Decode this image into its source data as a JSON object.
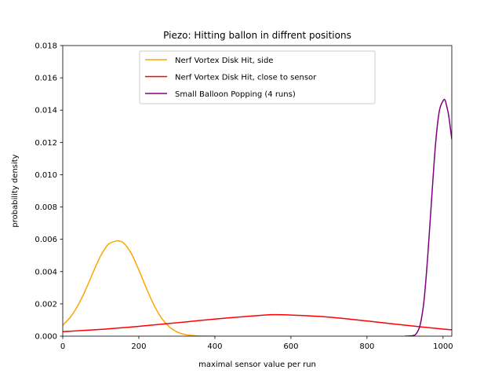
{
  "chart_data": {
    "type": "line",
    "title": "Piezo: Hitting ballon in diffrent positions",
    "xlabel": "maximal sensor value per run",
    "ylabel": "probability density",
    "xlim": [
      0,
      1023
    ],
    "ylim": [
      0,
      0.018
    ],
    "xticks": [
      0,
      200,
      400,
      600,
      800,
      1000
    ],
    "yticks": [
      "0.000",
      "0.002",
      "0.004",
      "0.006",
      "0.008",
      "0.010",
      "0.012",
      "0.014",
      "0.016",
      "0.018"
    ],
    "grid": false,
    "legend_position": "upper-center",
    "series": [
      {
        "name": "Nerf Vortex Disk Hit, side",
        "color": "#ffa500",
        "x": [
          0,
          20,
          40,
          60,
          80,
          100,
          120,
          140,
          145,
          160,
          180,
          200,
          220,
          240,
          260,
          280,
          300,
          320,
          340,
          360,
          380,
          400
        ],
        "y": [
          0.00068,
          0.00118,
          0.00191,
          0.00287,
          0.00396,
          0.00499,
          0.00569,
          0.00589,
          0.0059,
          0.00577,
          0.00513,
          0.00411,
          0.00296,
          0.00192,
          0.00111,
          0.00058,
          0.00027,
          0.00011,
          4e-05,
          1e-05,
          0.0,
          0.0
        ]
      },
      {
        "name": "Nerf Vortex Disk Hit, close to sensor",
        "color": "#ff0000",
        "x": [
          0,
          100,
          200,
          300,
          400,
          500,
          550,
          600,
          700,
          800,
          900,
          1000,
          1023
        ],
        "y": [
          0.00028,
          0.00042,
          0.00061,
          0.00083,
          0.00106,
          0.00125,
          0.00133,
          0.00131,
          0.00118,
          0.00094,
          0.00068,
          0.00044,
          0.0004
        ]
      },
      {
        "name": "Small Balloon Popping (4 runs)",
        "color": "#800080",
        "x": [
          900,
          920,
          930,
          940,
          950,
          960,
          970,
          980,
          990,
          1000,
          1005,
          1010,
          1015,
          1023
        ],
        "y": [
          0.0,
          3e-05,
          0.00017,
          0.00072,
          0.00222,
          0.00504,
          0.00851,
          0.01183,
          0.01392,
          0.01457,
          0.01463,
          0.0142,
          0.01363,
          0.0122
        ]
      }
    ]
  }
}
